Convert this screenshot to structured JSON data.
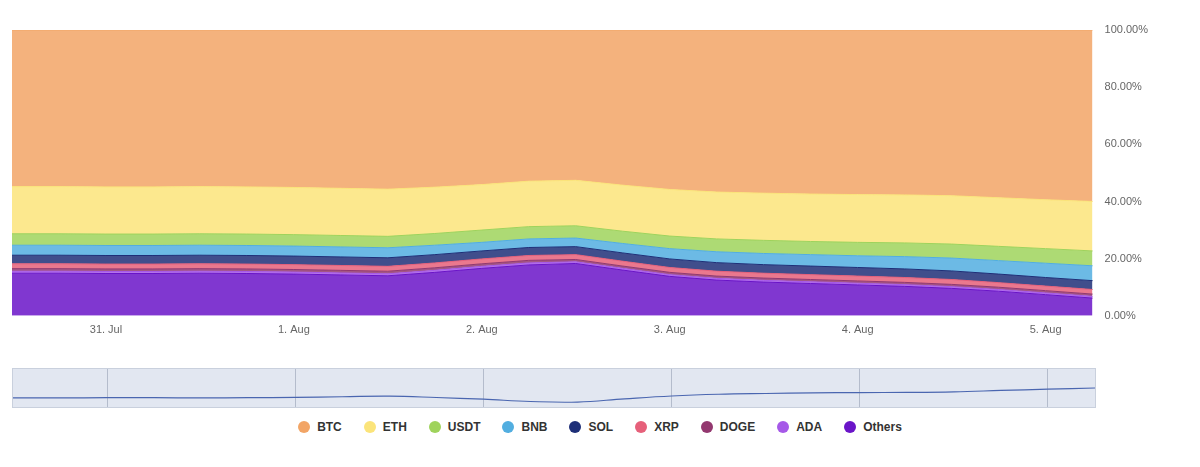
{
  "chart_data": {
    "type": "area",
    "stacked": true,
    "grid": false,
    "legend": "bottom",
    "categories": [
      null,
      null,
      "31. Jul",
      null,
      null,
      null,
      "1. Aug",
      null,
      null,
      null,
      "2. Aug",
      null,
      null,
      null,
      "3. Aug",
      null,
      null,
      null,
      "4. Aug",
      null,
      null,
      null,
      "5. Aug",
      null
    ],
    "ylim": [
      0,
      100
    ],
    "yticks": [
      {
        "value": 0,
        "label": "0.00%"
      },
      {
        "value": 20,
        "label": "20.00%"
      },
      {
        "value": 40,
        "label": "40.00%"
      },
      {
        "value": 60,
        "label": "60.00%"
      },
      {
        "value": 80,
        "label": "80.00%"
      },
      {
        "value": 100,
        "label": "100.00%"
      }
    ],
    "series": [
      {
        "name": "BTC",
        "color": "#f2a566",
        "values": [
          54.8,
          54.8,
          54.9,
          54.9,
          54.8,
          54.9,
          55.1,
          55.4,
          55.7,
          55.0,
          54.1,
          52.9,
          52.6,
          54.3,
          55.8,
          56.7,
          57.1,
          57.4,
          57.6,
          57.7,
          58.0,
          58.7,
          59.4,
          60.0
        ]
      },
      {
        "name": "ETH",
        "color": "#fbe47a",
        "values": [
          16.5,
          16.5,
          16.5,
          16.5,
          16.5,
          16.5,
          16.5,
          16.5,
          16.5,
          16.2,
          15.9,
          15.9,
          15.9,
          16.1,
          16.3,
          16.4,
          16.5,
          16.6,
          16.7,
          16.8,
          16.9,
          17.0,
          17.1,
          17.3
        ]
      },
      {
        "name": "USDT",
        "color": "#9fd35c",
        "values": [
          4.0,
          4.0,
          4.0,
          4.0,
          4.0,
          4.0,
          4.0,
          4.0,
          4.0,
          4.1,
          4.3,
          4.3,
          4.3,
          4.3,
          4.4,
          4.5,
          4.6,
          4.6,
          4.7,
          4.8,
          4.9,
          5.0,
          5.1,
          5.2
        ]
      },
      {
        "name": "BNB",
        "color": "#52aee0",
        "values": [
          3.5,
          3.5,
          3.5,
          3.5,
          3.5,
          3.5,
          3.5,
          3.5,
          3.5,
          3.3,
          3.0,
          3.0,
          3.0,
          3.3,
          3.6,
          3.8,
          3.9,
          4.0,
          4.1,
          4.3,
          4.5,
          4.7,
          5.0,
          5.2
        ]
      },
      {
        "name": "SOL",
        "color": "#1e2f78",
        "values": [
          3.0,
          3.0,
          3.0,
          3.0,
          3.0,
          3.0,
          3.0,
          3.0,
          3.0,
          2.9,
          2.8,
          2.8,
          2.8,
          2.9,
          3.0,
          3.0,
          3.0,
          3.0,
          3.0,
          3.0,
          3.0,
          3.0,
          3.0,
          3.1
        ]
      },
      {
        "name": "XRP",
        "color": "#e6607a",
        "values": [
          1.7,
          1.7,
          1.7,
          1.7,
          1.7,
          1.7,
          1.7,
          1.7,
          1.7,
          1.7,
          1.7,
          1.7,
          1.7,
          1.7,
          1.7,
          1.7,
          1.7,
          1.7,
          1.7,
          1.7,
          1.7,
          1.6,
          1.6,
          1.6
        ]
      },
      {
        "name": "DOGE",
        "color": "#93386f",
        "values": [
          0.9,
          0.9,
          0.9,
          0.9,
          0.9,
          0.9,
          0.9,
          0.9,
          0.9,
          0.9,
          0.9,
          0.9,
          0.8,
          0.8,
          0.8,
          0.8,
          0.8,
          0.8,
          0.8,
          0.8,
          0.8,
          0.8,
          0.8,
          0.8
        ]
      },
      {
        "name": "ADA",
        "color": "#a659e8",
        "values": [
          0.7,
          0.7,
          0.7,
          0.7,
          0.7,
          0.7,
          0.7,
          0.7,
          0.7,
          0.7,
          0.7,
          0.7,
          0.6,
          0.6,
          0.6,
          0.6,
          0.6,
          0.6,
          0.6,
          0.6,
          0.6,
          0.6,
          0.6,
          0.6
        ]
      },
      {
        "name": "Others",
        "color": "#6a14c8",
        "values": [
          14.9,
          14.9,
          14.8,
          14.8,
          14.9,
          14.8,
          14.6,
          14.3,
          14.0,
          15.2,
          16.6,
          17.8,
          18.3,
          16.0,
          13.8,
          12.5,
          11.8,
          11.3,
          10.8,
          10.3,
          9.6,
          8.6,
          7.4,
          6.2
        ]
      }
    ]
  }
}
